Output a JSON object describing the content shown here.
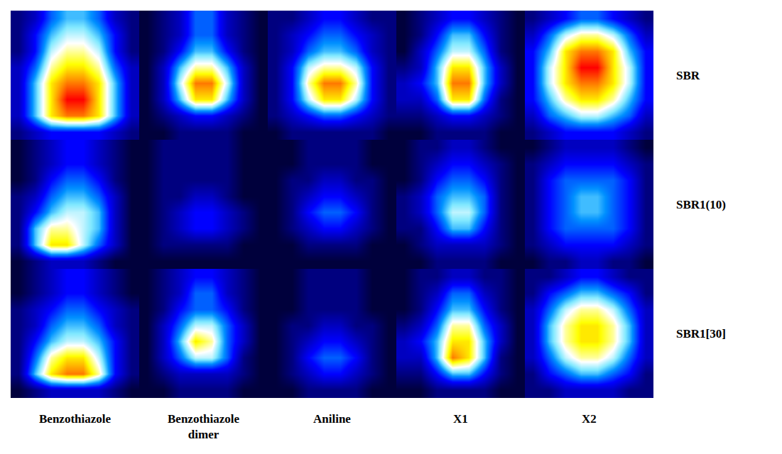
{
  "chart_data": {
    "type": "heatmap",
    "tick_labels": false,
    "columns": [
      "Benzothiazole",
      "Benzothiazole dimer",
      "Aniline",
      "X1",
      "X2"
    ],
    "rows": [
      "SBR",
      "SBR1(10)",
      "SBR1[30]"
    ],
    "zlim": [
      0,
      10
    ],
    "panels": [
      [
        [
          [
            1,
            2,
            4,
            5,
            5,
            4,
            2,
            1
          ],
          [
            1,
            3,
            5,
            6,
            6,
            5,
            3,
            1
          ],
          [
            1,
            3,
            6,
            7,
            7,
            6,
            3,
            1
          ],
          [
            2,
            4,
            7,
            8,
            8,
            7,
            4,
            2
          ],
          [
            2,
            5,
            8,
            9,
            9,
            8,
            5,
            2
          ],
          [
            2,
            5,
            8,
            10,
            10,
            8,
            5,
            2
          ],
          [
            2,
            5,
            8,
            9,
            9,
            8,
            5,
            2
          ],
          [
            1,
            2,
            3,
            3,
            3,
            3,
            2,
            1
          ]
        ],
        [
          [
            0,
            1,
            2,
            4,
            4,
            2,
            1,
            0
          ],
          [
            0,
            1,
            2,
            4,
            4,
            2,
            1,
            0
          ],
          [
            0,
            1,
            3,
            5,
            5,
            3,
            1,
            0
          ],
          [
            0,
            2,
            5,
            7,
            7,
            5,
            2,
            0
          ],
          [
            0,
            2,
            6,
            9,
            9,
            6,
            2,
            0
          ],
          [
            0,
            2,
            5,
            8,
            8,
            5,
            2,
            0
          ],
          [
            0,
            1,
            2,
            3,
            3,
            2,
            1,
            0
          ],
          [
            0,
            0,
            1,
            1,
            1,
            1,
            0,
            0
          ]
        ],
        [
          [
            1,
            1,
            2,
            3,
            3,
            2,
            1,
            1
          ],
          [
            1,
            2,
            3,
            4,
            4,
            3,
            2,
            1
          ],
          [
            1,
            2,
            4,
            5,
            5,
            4,
            2,
            1
          ],
          [
            1,
            3,
            6,
            7,
            7,
            6,
            3,
            1
          ],
          [
            1,
            3,
            7,
            9,
            9,
            7,
            3,
            1
          ],
          [
            1,
            3,
            6,
            8,
            8,
            6,
            3,
            1
          ],
          [
            1,
            2,
            3,
            4,
            4,
            3,
            2,
            1
          ],
          [
            0,
            1,
            1,
            1,
            1,
            1,
            1,
            0
          ]
        ],
        [
          [
            0,
            1,
            2,
            3,
            3,
            2,
            1,
            0
          ],
          [
            0,
            1,
            3,
            5,
            5,
            3,
            1,
            0
          ],
          [
            0,
            2,
            4,
            6,
            6,
            4,
            1,
            0
          ],
          [
            1,
            2,
            5,
            8,
            8,
            5,
            2,
            0
          ],
          [
            2,
            3,
            5,
            9,
            9,
            5,
            2,
            0
          ],
          [
            2,
            2,
            4,
            8,
            8,
            4,
            1,
            0
          ],
          [
            1,
            1,
            2,
            3,
            3,
            2,
            1,
            0
          ],
          [
            0,
            0,
            1,
            1,
            1,
            1,
            0,
            0
          ]
        ],
        [
          [
            1,
            2,
            3,
            4,
            4,
            3,
            2,
            1
          ],
          [
            2,
            4,
            6,
            7,
            7,
            6,
            4,
            2
          ],
          [
            3,
            5,
            8,
            9,
            9,
            8,
            5,
            3
          ],
          [
            3,
            6,
            8,
            10,
            10,
            8,
            6,
            3
          ],
          [
            3,
            6,
            8,
            9,
            9,
            8,
            6,
            3
          ],
          [
            3,
            5,
            7,
            8,
            8,
            7,
            5,
            3
          ],
          [
            2,
            4,
            5,
            6,
            6,
            5,
            4,
            2
          ],
          [
            1,
            2,
            3,
            3,
            3,
            3,
            2,
            1
          ]
        ]
      ],
      [
        [
          [
            0,
            1,
            2,
            3,
            3,
            2,
            1,
            0
          ],
          [
            0,
            1,
            2,
            3,
            3,
            2,
            1,
            0
          ],
          [
            0,
            1,
            3,
            4,
            4,
            3,
            1,
            0
          ],
          [
            1,
            2,
            4,
            5,
            5,
            4,
            2,
            0
          ],
          [
            1,
            3,
            5,
            6,
            6,
            5,
            2,
            0
          ],
          [
            1,
            5,
            7,
            7,
            6,
            5,
            2,
            0
          ],
          [
            1,
            5,
            8,
            8,
            6,
            4,
            2,
            0
          ],
          [
            0,
            1,
            2,
            2,
            2,
            1,
            0,
            0
          ]
        ],
        [
          [
            0,
            1,
            1,
            1,
            1,
            1,
            0,
            0
          ],
          [
            0,
            1,
            1,
            1,
            1,
            1,
            0,
            0
          ],
          [
            0,
            1,
            1,
            1,
            1,
            1,
            0,
            0
          ],
          [
            0,
            1,
            1,
            2,
            2,
            1,
            0,
            0
          ],
          [
            0,
            1,
            2,
            3,
            3,
            2,
            1,
            0
          ],
          [
            0,
            1,
            2,
            3,
            3,
            2,
            1,
            0
          ],
          [
            0,
            1,
            1,
            1,
            1,
            1,
            0,
            0
          ],
          [
            0,
            0,
            0,
            0,
            0,
            0,
            0,
            0
          ]
        ],
        [
          [
            0,
            0,
            1,
            1,
            1,
            1,
            0,
            0
          ],
          [
            0,
            0,
            1,
            1,
            1,
            1,
            0,
            0
          ],
          [
            0,
            1,
            1,
            2,
            2,
            1,
            1,
            0
          ],
          [
            0,
            1,
            2,
            3,
            3,
            2,
            1,
            0
          ],
          [
            0,
            1,
            3,
            4,
            4,
            3,
            1,
            0
          ],
          [
            0,
            1,
            2,
            3,
            3,
            2,
            1,
            0
          ],
          [
            0,
            0,
            1,
            1,
            1,
            1,
            0,
            0
          ],
          [
            0,
            0,
            0,
            0,
            0,
            0,
            0,
            0
          ]
        ],
        [
          [
            0,
            1,
            1,
            2,
            2,
            1,
            0,
            0
          ],
          [
            0,
            1,
            2,
            3,
            3,
            2,
            1,
            0
          ],
          [
            0,
            1,
            3,
            4,
            4,
            3,
            1,
            0
          ],
          [
            1,
            2,
            4,
            5,
            5,
            4,
            1,
            0
          ],
          [
            1,
            2,
            4,
            6,
            6,
            4,
            1,
            0
          ],
          [
            1,
            1,
            3,
            5,
            5,
            3,
            1,
            0
          ],
          [
            0,
            1,
            2,
            2,
            2,
            2,
            1,
            0
          ],
          [
            0,
            0,
            1,
            1,
            1,
            1,
            0,
            0
          ]
        ],
        [
          [
            0,
            1,
            2,
            2,
            2,
            2,
            1,
            0
          ],
          [
            1,
            2,
            3,
            3,
            3,
            3,
            2,
            1
          ],
          [
            1,
            3,
            4,
            4,
            4,
            4,
            3,
            1
          ],
          [
            1,
            3,
            4,
            5,
            5,
            4,
            3,
            1
          ],
          [
            1,
            3,
            4,
            5,
            5,
            4,
            3,
            1
          ],
          [
            1,
            3,
            4,
            4,
            4,
            4,
            3,
            1
          ],
          [
            1,
            2,
            3,
            3,
            3,
            3,
            2,
            1
          ],
          [
            0,
            1,
            1,
            2,
            2,
            1,
            1,
            0
          ]
        ]
      ],
      [
        [
          [
            0,
            1,
            2,
            3,
            3,
            2,
            1,
            0
          ],
          [
            0,
            1,
            2,
            3,
            3,
            2,
            1,
            0
          ],
          [
            1,
            2,
            3,
            4,
            4,
            3,
            2,
            1
          ],
          [
            1,
            2,
            4,
            5,
            5,
            4,
            2,
            1
          ],
          [
            1,
            3,
            5,
            6,
            6,
            5,
            3,
            1
          ],
          [
            1,
            4,
            7,
            8,
            8,
            6,
            3,
            1
          ],
          [
            1,
            5,
            8,
            9,
            9,
            7,
            3,
            1
          ],
          [
            0,
            1,
            2,
            2,
            2,
            2,
            1,
            0
          ]
        ],
        [
          [
            0,
            1,
            2,
            3,
            3,
            2,
            1,
            0
          ],
          [
            0,
            1,
            2,
            4,
            4,
            2,
            1,
            0
          ],
          [
            0,
            1,
            3,
            4,
            4,
            3,
            1,
            0
          ],
          [
            0,
            2,
            4,
            6,
            6,
            4,
            2,
            0
          ],
          [
            0,
            2,
            5,
            8,
            7,
            4,
            2,
            0
          ],
          [
            0,
            2,
            4,
            6,
            6,
            4,
            1,
            0
          ],
          [
            0,
            1,
            2,
            2,
            2,
            2,
            1,
            0
          ],
          [
            0,
            0,
            1,
            1,
            1,
            1,
            0,
            0
          ]
        ],
        [
          [
            0,
            0,
            1,
            1,
            1,
            1,
            0,
            0
          ],
          [
            0,
            0,
            1,
            1,
            1,
            1,
            0,
            0
          ],
          [
            0,
            0,
            1,
            1,
            1,
            1,
            0,
            0
          ],
          [
            0,
            1,
            1,
            2,
            2,
            1,
            1,
            0
          ],
          [
            0,
            1,
            2,
            3,
            3,
            2,
            1,
            0
          ],
          [
            0,
            1,
            3,
            4,
            4,
            3,
            1,
            0
          ],
          [
            0,
            1,
            2,
            3,
            3,
            2,
            1,
            0
          ],
          [
            0,
            0,
            1,
            1,
            1,
            1,
            0,
            0
          ]
        ],
        [
          [
            0,
            1,
            1,
            2,
            2,
            1,
            1,
            0
          ],
          [
            0,
            1,
            2,
            4,
            4,
            2,
            1,
            0
          ],
          [
            0,
            1,
            3,
            5,
            5,
            3,
            1,
            0
          ],
          [
            1,
            2,
            4,
            7,
            7,
            4,
            2,
            0
          ],
          [
            2,
            3,
            5,
            8,
            8,
            5,
            2,
            0
          ],
          [
            2,
            2,
            5,
            9,
            8,
            5,
            1,
            0
          ],
          [
            1,
            1,
            3,
            5,
            5,
            3,
            1,
            0
          ],
          [
            0,
            0,
            1,
            1,
            1,
            1,
            0,
            0
          ]
        ],
        [
          [
            1,
            1,
            2,
            3,
            3,
            2,
            1,
            1
          ],
          [
            1,
            3,
            4,
            5,
            5,
            4,
            3,
            1
          ],
          [
            2,
            4,
            6,
            7,
            7,
            6,
            4,
            2
          ],
          [
            2,
            5,
            7,
            8,
            8,
            7,
            5,
            2
          ],
          [
            2,
            5,
            7,
            8,
            8,
            7,
            5,
            2
          ],
          [
            2,
            4,
            6,
            7,
            7,
            6,
            4,
            2
          ],
          [
            1,
            3,
            4,
            5,
            5,
            4,
            3,
            1
          ],
          [
            1,
            1,
            2,
            2,
            2,
            2,
            1,
            1
          ]
        ]
      ]
    ]
  }
}
